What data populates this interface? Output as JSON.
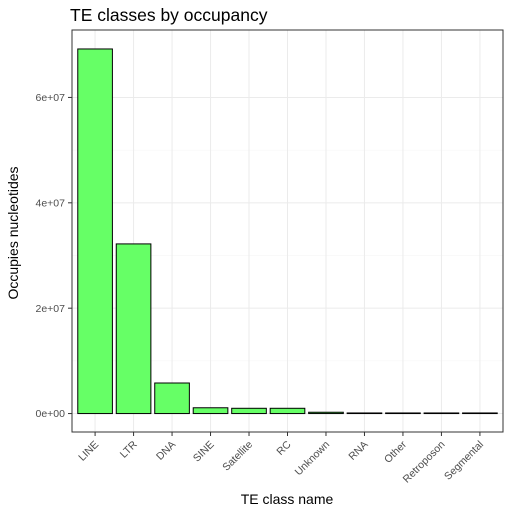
{
  "chart_data": {
    "type": "bar",
    "title": "TE classes by occupancy",
    "xlabel": "TE class name",
    "ylabel": "Occupies nucleotides",
    "categories": [
      "LINE",
      "LTR",
      "DNA",
      "SINE",
      "Satellite",
      "RC",
      "Unknown",
      "RNA",
      "Other",
      "Retroposon",
      "Segmental"
    ],
    "values": [
      69200000,
      32200000,
      5800000,
      1100000,
      1000000,
      1000000,
      250000,
      60000,
      50000,
      40000,
      30000
    ],
    "ylim": [
      -3500000,
      72800000
    ],
    "yticks": [
      0,
      20000000,
      40000000,
      60000000
    ],
    "ytick_labels": [
      "0e+00",
      "2e+07",
      "4e+07",
      "6e+07"
    ],
    "bar_color": "#66ff66",
    "bar_outline": "#000000",
    "grid": true,
    "legend": "none"
  }
}
